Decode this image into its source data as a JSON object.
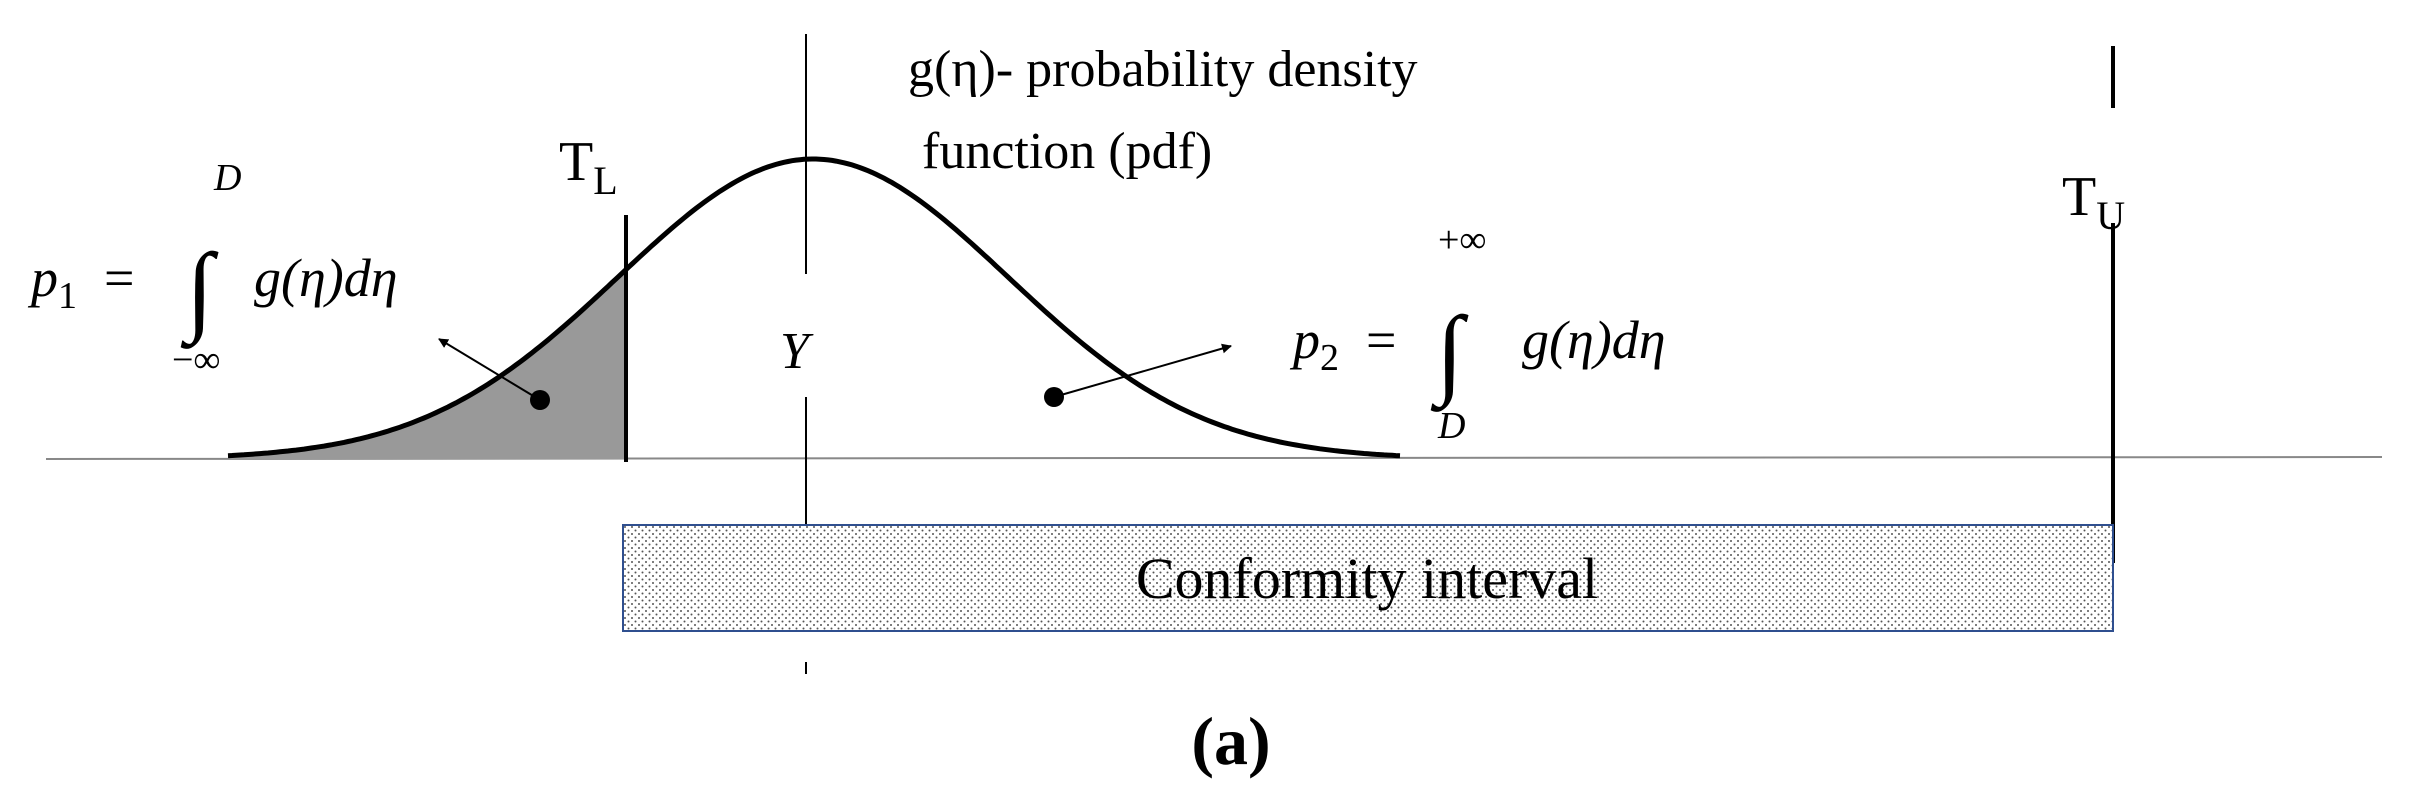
{
  "pdf_label": [
    "g(η)- probability density",
    "function (pdf)"
  ],
  "lower_limit": {
    "base": "T",
    "sub": "L"
  },
  "upper_limit": {
    "base": "T",
    "sub": "U"
  },
  "mean": "Y",
  "p1": {
    "symbol": "p",
    "sub": "1",
    "eq": "=",
    "integral": "∫",
    "upper": "D",
    "lower": "−∞",
    "integrand": "g(η)dη"
  },
  "p2": {
    "symbol": "p",
    "sub": "2",
    "eq": "=",
    "integral": "∫",
    "upper": "+∞",
    "lower": "D",
    "integrand": "g(η)dη"
  },
  "interval": "Conformity interval",
  "caption": "(a)"
}
